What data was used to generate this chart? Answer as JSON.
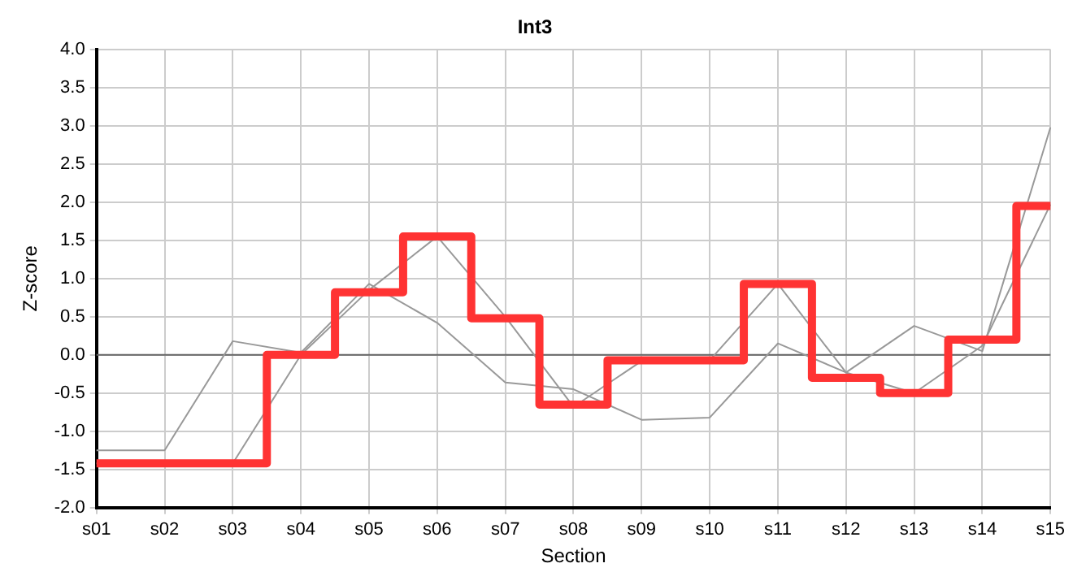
{
  "chart_data": {
    "type": "line",
    "title": "Int3",
    "xlabel": "Section",
    "ylabel": "Z-score",
    "categories": [
      "s01",
      "s02",
      "s03",
      "s04",
      "s05",
      "s06",
      "s07",
      "s08",
      "s09",
      "s10",
      "s11",
      "s12",
      "s13",
      "s14",
      "s15"
    ],
    "series": [
      {
        "color": "#999999",
        "values": [
          -1.25,
          -1.25,
          0.18,
          0.03,
          0.93,
          0.42,
          -0.36,
          -0.45,
          -0.85,
          -0.82,
          0.15,
          -0.23,
          0.38,
          0.05,
          2.98
        ]
      },
      {
        "color": "#999999",
        "values": [
          -1.42,
          -1.42,
          -1.42,
          0.0,
          0.85,
          1.55,
          0.5,
          -0.68,
          -0.08,
          -0.07,
          0.93,
          -0.23,
          -0.5,
          0.12,
          1.97
        ]
      },
      {
        "type": "step",
        "color": "#ff3333",
        "values": [
          -1.42,
          -1.42,
          -1.42,
          0.0,
          0.82,
          1.55,
          0.48,
          -0.65,
          -0.07,
          -0.07,
          0.93,
          -0.3,
          -0.5,
          0.2,
          1.95
        ]
      }
    ],
    "ylim": [
      -2.0,
      4.0
    ],
    "yticks": [
      {
        "value": -2,
        "label": "-2.0"
      },
      {
        "value": -1.5,
        "label": "-1.5"
      },
      {
        "value": -1,
        "label": "-1.0"
      },
      {
        "value": -0.5,
        "label": "-0.5"
      },
      {
        "value": 0,
        "label": "0.0"
      },
      {
        "value": 0.5,
        "label": "0.5"
      },
      {
        "value": 1,
        "label": "1.0"
      },
      {
        "value": 1.5,
        "label": "1.5"
      },
      {
        "value": 2,
        "label": "2.0"
      },
      {
        "value": 2.5,
        "label": "2.5"
      },
      {
        "value": 3,
        "label": "3.0"
      },
      {
        "value": 3.5,
        "label": "3.5"
      },
      {
        "value": 4,
        "label": "4.0"
      }
    ],
    "ref_lines": [
      {
        "axis": "y",
        "value": 0,
        "color": "#666666"
      }
    ],
    "grid": true,
    "legend": false,
    "marker": "none"
  }
}
